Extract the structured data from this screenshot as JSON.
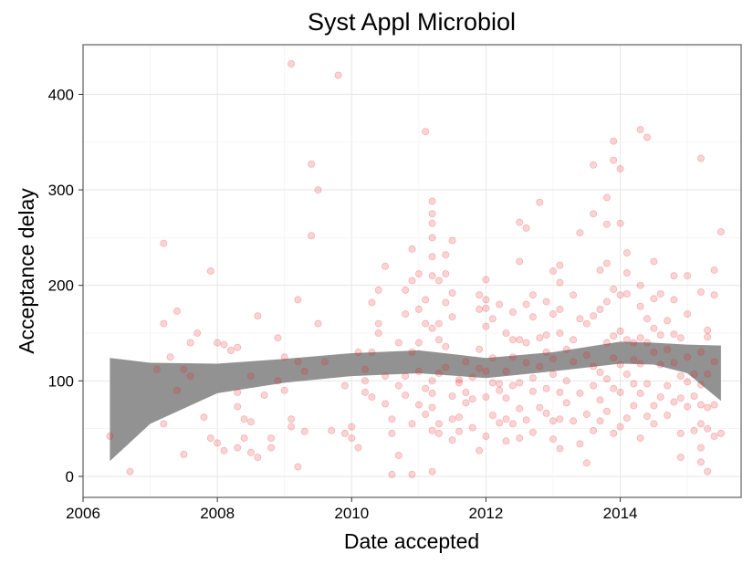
{
  "chart_data": {
    "type": "scatter",
    "title": "Syst Appl Microbiol",
    "xlabel": "Date accepted",
    "ylabel": "Acceptance delay",
    "x_tick_labels": [
      "2006",
      "2008",
      "2010",
      "2012",
      "2014"
    ],
    "x_ticks": [
      2006,
      2008,
      2010,
      2012,
      2014
    ],
    "y_tick_labels": [
      "0",
      "100",
      "200",
      "300",
      "400"
    ],
    "y_ticks": [
      0,
      100,
      200,
      300,
      400
    ],
    "xlim": [
      2006.0,
      2015.8
    ],
    "ylim": [
      -22,
      452
    ],
    "grid": true,
    "point_color": "#e8262c",
    "band_color": "#8c8c8c",
    "points": [
      [
        2006.4,
        42
      ],
      [
        2006.7,
        5
      ],
      [
        2007.1,
        112
      ],
      [
        2007.2,
        244
      ],
      [
        2007.2,
        160
      ],
      [
        2007.2,
        55
      ],
      [
        2007.3,
        125
      ],
      [
        2007.4,
        173
      ],
      [
        2007.4,
        90
      ],
      [
        2007.5,
        23
      ],
      [
        2007.5,
        112
      ],
      [
        2007.6,
        105
      ],
      [
        2007.6,
        140
      ],
      [
        2007.7,
        150
      ],
      [
        2007.8,
        62
      ],
      [
        2007.9,
        40
      ],
      [
        2007.9,
        215
      ],
      [
        2008.0,
        35
      ],
      [
        2008.0,
        140
      ],
      [
        2008.1,
        138
      ],
      [
        2008.1,
        27
      ],
      [
        2008.2,
        132
      ],
      [
        2008.3,
        88
      ],
      [
        2008.3,
        135
      ],
      [
        2008.3,
        73
      ],
      [
        2008.3,
        30
      ],
      [
        2008.4,
        60
      ],
      [
        2008.4,
        40
      ],
      [
        2008.5,
        57
      ],
      [
        2008.5,
        25
      ],
      [
        2008.5,
        105
      ],
      [
        2008.6,
        20
      ],
      [
        2008.6,
        168
      ],
      [
        2008.7,
        85
      ],
      [
        2008.8,
        40
      ],
      [
        2008.8,
        30
      ],
      [
        2008.9,
        145
      ],
      [
        2008.9,
        100
      ],
      [
        2009.0,
        90
      ],
      [
        2009.0,
        125
      ],
      [
        2009.1,
        60
      ],
      [
        2009.1,
        432
      ],
      [
        2009.1,
        52
      ],
      [
        2009.2,
        185
      ],
      [
        2009.2,
        120
      ],
      [
        2009.2,
        10
      ],
      [
        2009.3,
        110
      ],
      [
        2009.3,
        47
      ],
      [
        2009.4,
        327
      ],
      [
        2009.4,
        252
      ],
      [
        2009.5,
        160
      ],
      [
        2009.5,
        300
      ],
      [
        2009.6,
        120
      ],
      [
        2009.7,
        48
      ],
      [
        2009.8,
        420
      ],
      [
        2009.9,
        45
      ],
      [
        2009.9,
        95
      ],
      [
        2010.0,
        52
      ],
      [
        2010.0,
        40
      ],
      [
        2010.1,
        30
      ],
      [
        2010.1,
        130
      ],
      [
        2010.2,
        112
      ],
      [
        2010.2,
        100
      ],
      [
        2010.2,
        88
      ],
      [
        2010.3,
        83
      ],
      [
        2010.3,
        130
      ],
      [
        2010.3,
        182
      ],
      [
        2010.4,
        195
      ],
      [
        2010.4,
        160
      ],
      [
        2010.4,
        150
      ],
      [
        2010.5,
        220
      ],
      [
        2010.5,
        105
      ],
      [
        2010.5,
        76
      ],
      [
        2010.6,
        60
      ],
      [
        2010.6,
        45
      ],
      [
        2010.6,
        2
      ],
      [
        2010.7,
        140
      ],
      [
        2010.7,
        95
      ],
      [
        2010.7,
        22
      ],
      [
        2010.8,
        195
      ],
      [
        2010.8,
        170
      ],
      [
        2010.8,
        85
      ],
      [
        2010.8,
        105
      ],
      [
        2010.9,
        205
      ],
      [
        2010.9,
        238
      ],
      [
        2010.9,
        130
      ],
      [
        2010.9,
        55
      ],
      [
        2010.9,
        2
      ],
      [
        2011.0,
        212
      ],
      [
        2011.0,
        175
      ],
      [
        2011.0,
        140
      ],
      [
        2011.0,
        75
      ],
      [
        2011.0,
        110
      ],
      [
        2011.1,
        361
      ],
      [
        2011.1,
        185
      ],
      [
        2011.1,
        160
      ],
      [
        2011.1,
        92
      ],
      [
        2011.1,
        65
      ],
      [
        2011.2,
        288
      ],
      [
        2011.2,
        275
      ],
      [
        2011.2,
        265
      ],
      [
        2011.2,
        250
      ],
      [
        2011.2,
        230
      ],
      [
        2011.2,
        210
      ],
      [
        2011.2,
        155
      ],
      [
        2011.2,
        100
      ],
      [
        2011.2,
        87
      ],
      [
        2011.2,
        72
      ],
      [
        2011.2,
        48
      ],
      [
        2011.2,
        5
      ],
      [
        2011.3,
        205
      ],
      [
        2011.3,
        160
      ],
      [
        2011.3,
        143
      ],
      [
        2011.3,
        108
      ],
      [
        2011.3,
        55
      ],
      [
        2011.3,
        45
      ],
      [
        2011.4,
        232
      ],
      [
        2011.4,
        212
      ],
      [
        2011.4,
        182
      ],
      [
        2011.4,
        136
      ],
      [
        2011.4,
        114
      ],
      [
        2011.5,
        247
      ],
      [
        2011.5,
        192
      ],
      [
        2011.5,
        167
      ],
      [
        2011.5,
        60
      ],
      [
        2011.5,
        84
      ],
      [
        2011.5,
        38
      ],
      [
        2011.6,
        62
      ],
      [
        2011.6,
        101
      ],
      [
        2011.6,
        47
      ],
      [
        2011.6,
        98
      ],
      [
        2011.7,
        120
      ],
      [
        2011.7,
        88
      ],
      [
        2011.7,
        77
      ],
      [
        2011.8,
        104
      ],
      [
        2011.8,
        51
      ],
      [
        2011.8,
        81
      ],
      [
        2011.9,
        190
      ],
      [
        2011.9,
        175
      ],
      [
        2011.9,
        133
      ],
      [
        2011.9,
        113
      ],
      [
        2011.9,
        27
      ],
      [
        2012.0,
        206
      ],
      [
        2012.0,
        185
      ],
      [
        2012.0,
        176
      ],
      [
        2012.0,
        157
      ],
      [
        2012.0,
        110
      ],
      [
        2012.0,
        83
      ],
      [
        2012.0,
        42
      ],
      [
        2012.1,
        165
      ],
      [
        2012.1,
        124
      ],
      [
        2012.1,
        98
      ],
      [
        2012.1,
        64
      ],
      [
        2012.2,
        180
      ],
      [
        2012.2,
        97
      ],
      [
        2012.2,
        90
      ],
      [
        2012.2,
        56
      ],
      [
        2012.3,
        150
      ],
      [
        2012.3,
        110
      ],
      [
        2012.3,
        82
      ],
      [
        2012.3,
        60
      ],
      [
        2012.3,
        37
      ],
      [
        2012.4,
        172
      ],
      [
        2012.4,
        143
      ],
      [
        2012.4,
        125
      ],
      [
        2012.4,
        95
      ],
      [
        2012.4,
        55
      ],
      [
        2012.5,
        266
      ],
      [
        2012.5,
        225
      ],
      [
        2012.5,
        143
      ],
      [
        2012.5,
        98
      ],
      [
        2012.5,
        71
      ],
      [
        2012.5,
        40
      ],
      [
        2012.6,
        260
      ],
      [
        2012.6,
        180
      ],
      [
        2012.6,
        140
      ],
      [
        2012.6,
        119
      ],
      [
        2012.6,
        59
      ],
      [
        2012.7,
        190
      ],
      [
        2012.7,
        167
      ],
      [
        2012.7,
        103
      ],
      [
        2012.7,
        89
      ],
      [
        2012.7,
        46
      ],
      [
        2012.8,
        287
      ],
      [
        2012.8,
        145
      ],
      [
        2012.8,
        115
      ],
      [
        2012.8,
        72
      ],
      [
        2012.9,
        183
      ],
      [
        2012.9,
        148
      ],
      [
        2012.9,
        130
      ],
      [
        2012.9,
        92
      ],
      [
        2012.9,
        66
      ],
      [
        2013.0,
        215
      ],
      [
        2013.0,
        170
      ],
      [
        2013.0,
        123
      ],
      [
        2013.0,
        107
      ],
      [
        2013.0,
        58
      ],
      [
        2013.0,
        39
      ],
      [
        2013.1,
        221
      ],
      [
        2013.1,
        203
      ],
      [
        2013.1,
        175
      ],
      [
        2013.1,
        150
      ],
      [
        2013.1,
        88
      ],
      [
        2013.1,
        60
      ],
      [
        2013.1,
        29
      ],
      [
        2013.2,
        133
      ],
      [
        2013.2,
        100
      ],
      [
        2013.2,
        77
      ],
      [
        2013.3,
        190
      ],
      [
        2013.3,
        143
      ],
      [
        2013.3,
        120
      ],
      [
        2013.3,
        58
      ],
      [
        2013.4,
        255
      ],
      [
        2013.4,
        165
      ],
      [
        2013.4,
        87
      ],
      [
        2013.4,
        34
      ],
      [
        2013.5,
        160
      ],
      [
        2013.5,
        127
      ],
      [
        2013.5,
        65
      ],
      [
        2013.5,
        14
      ],
      [
        2013.6,
        326
      ],
      [
        2013.6,
        275
      ],
      [
        2013.6,
        168
      ],
      [
        2013.6,
        115
      ],
      [
        2013.6,
        95
      ],
      [
        2013.6,
        48
      ],
      [
        2013.7,
        216
      ],
      [
        2013.7,
        175
      ],
      [
        2013.7,
        109
      ],
      [
        2013.7,
        80
      ],
      [
        2013.7,
        58
      ],
      [
        2013.8,
        264
      ],
      [
        2013.8,
        292
      ],
      [
        2013.8,
        223
      ],
      [
        2013.8,
        183
      ],
      [
        2013.8,
        140
      ],
      [
        2013.8,
        102
      ],
      [
        2013.8,
        68
      ],
      [
        2013.9,
        351
      ],
      [
        2013.9,
        331
      ],
      [
        2013.9,
        196
      ],
      [
        2013.9,
        147
      ],
      [
        2013.9,
        124
      ],
      [
        2013.9,
        92
      ],
      [
        2013.9,
        45
      ],
      [
        2014.0,
        322
      ],
      [
        2014.0,
        265
      ],
      [
        2014.0,
        190
      ],
      [
        2014.0,
        152
      ],
      [
        2014.0,
        117
      ],
      [
        2014.0,
        88
      ],
      [
        2014.0,
        52
      ],
      [
        2014.1,
        234
      ],
      [
        2014.1,
        213
      ],
      [
        2014.1,
        191
      ],
      [
        2014.1,
        143
      ],
      [
        2014.1,
        107
      ],
      [
        2014.1,
        61
      ],
      [
        2014.2,
        140
      ],
      [
        2014.2,
        122
      ],
      [
        2014.2,
        97
      ],
      [
        2014.2,
        74
      ],
      [
        2014.3,
        363
      ],
      [
        2014.3,
        200
      ],
      [
        2014.3,
        178
      ],
      [
        2014.3,
        145
      ],
      [
        2014.3,
        118
      ],
      [
        2014.3,
        87
      ],
      [
        2014.3,
        40
      ],
      [
        2014.4,
        355
      ],
      [
        2014.4,
        165
      ],
      [
        2014.4,
        140
      ],
      [
        2014.4,
        97
      ],
      [
        2014.4,
        63
      ],
      [
        2014.5,
        225
      ],
      [
        2014.5,
        186
      ],
      [
        2014.5,
        155
      ],
      [
        2014.5,
        130
      ],
      [
        2014.5,
        74
      ],
      [
        2014.5,
        55
      ],
      [
        2014.6,
        191
      ],
      [
        2014.6,
        148
      ],
      [
        2014.6,
        117
      ],
      [
        2014.6,
        83
      ],
      [
        2014.7,
        163
      ],
      [
        2014.7,
        133
      ],
      [
        2014.7,
        95
      ],
      [
        2014.7,
        64
      ],
      [
        2014.8,
        210
      ],
      [
        2014.8,
        185
      ],
      [
        2014.8,
        149
      ],
      [
        2014.8,
        119
      ],
      [
        2014.8,
        78
      ],
      [
        2014.9,
        145
      ],
      [
        2014.9,
        105
      ],
      [
        2014.9,
        82
      ],
      [
        2014.9,
        45
      ],
      [
        2014.9,
        20
      ],
      [
        2015.0,
        210
      ],
      [
        2015.0,
        170
      ],
      [
        2015.0,
        125
      ],
      [
        2015.0,
        99
      ],
      [
        2015.0,
        73
      ],
      [
        2015.1,
        107
      ],
      [
        2015.1,
        84
      ],
      [
        2015.1,
        48
      ],
      [
        2015.2,
        333
      ],
      [
        2015.2,
        193
      ],
      [
        2015.2,
        130
      ],
      [
        2015.2,
        96
      ],
      [
        2015.2,
        75
      ],
      [
        2015.2,
        55
      ],
      [
        2015.2,
        30
      ],
      [
        2015.2,
        15
      ],
      [
        2015.3,
        153
      ],
      [
        2015.3,
        146
      ],
      [
        2015.3,
        107
      ],
      [
        2015.3,
        72
      ],
      [
        2015.3,
        50
      ],
      [
        2015.3,
        5
      ],
      [
        2015.4,
        216
      ],
      [
        2015.4,
        190
      ],
      [
        2015.4,
        120
      ],
      [
        2015.4,
        75
      ],
      [
        2015.4,
        42
      ],
      [
        2015.5,
        256
      ],
      [
        2015.5,
        45
      ]
    ],
    "smooth_band": {
      "x": [
        2006.4,
        2007.0,
        2008.0,
        2009.0,
        2010.0,
        2011.0,
        2012.0,
        2013.0,
        2014.0,
        2014.5,
        2015.0,
        2015.5
      ],
      "upper": [
        124,
        119,
        118,
        123,
        129,
        132,
        124,
        130,
        141,
        140,
        138,
        137
      ],
      "lower": [
        16,
        55,
        87,
        98,
        105,
        108,
        103,
        110,
        118,
        117,
        108,
        79
      ]
    }
  }
}
